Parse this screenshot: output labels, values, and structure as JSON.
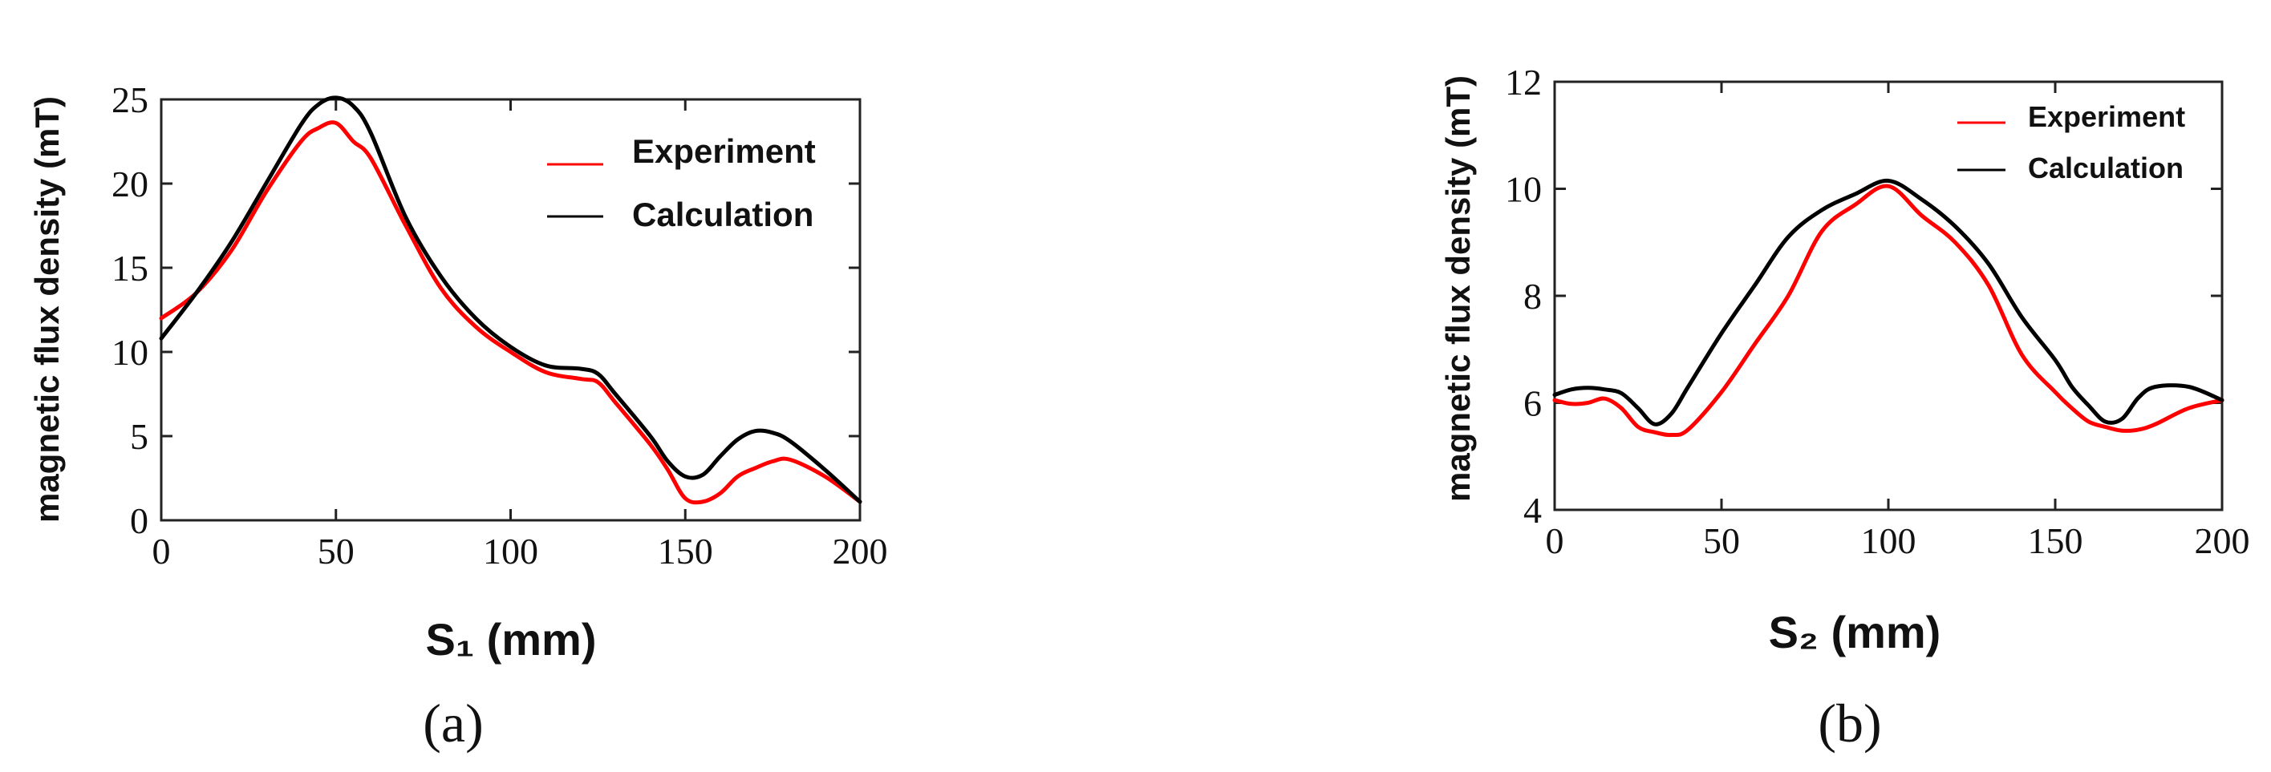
{
  "chart_data": [
    {
      "type": "line",
      "panel_label": "(a)",
      "xlabel": "S₁  (mm)",
      "ylabel": "magnetic flux density (mT)",
      "xlim": [
        0,
        200
      ],
      "ylim": [
        0,
        25
      ],
      "xticks": [
        "0",
        "50",
        "100",
        "150",
        "200"
      ],
      "yticks": [
        "0",
        "5",
        "10",
        "15",
        "20",
        "25"
      ],
      "grid": false,
      "legend_position": "top-right",
      "series": [
        {
          "name": "Experiment",
          "color": "#ff0000",
          "x": [
            0,
            10,
            20,
            30,
            40,
            45,
            50,
            55,
            60,
            70,
            80,
            90,
            100,
            110,
            120,
            125,
            130,
            140,
            145,
            150,
            155,
            160,
            165,
            170,
            175,
            180,
            190,
            200
          ],
          "y": [
            12,
            13.5,
            16,
            19.5,
            22.5,
            23.3,
            23.6,
            22.5,
            21.5,
            17.5,
            13.8,
            11.5,
            10,
            8.8,
            8.4,
            8.2,
            7,
            4.5,
            3,
            1.3,
            1.1,
            1.6,
            2.6,
            3.1,
            3.5,
            3.6,
            2.6,
            1.1
          ]
        },
        {
          "name": "Calculation",
          "color": "#000000",
          "x": [
            0,
            10,
            20,
            30,
            40,
            45,
            50,
            55,
            60,
            70,
            80,
            90,
            100,
            110,
            120,
            125,
            130,
            140,
            145,
            150,
            155,
            160,
            165,
            170,
            175,
            180,
            190,
            200
          ],
          "y": [
            10.8,
            13.5,
            16.5,
            20,
            23.5,
            24.7,
            25.1,
            24.6,
            23,
            18,
            14.5,
            12,
            10.3,
            9.2,
            9,
            8.7,
            7.5,
            5,
            3.5,
            2.6,
            2.7,
            3.8,
            4.8,
            5.3,
            5.2,
            4.7,
            3,
            1.1
          ]
        }
      ]
    },
    {
      "type": "line",
      "panel_label": "(b)",
      "xlabel": "S₂  (mm)",
      "ylabel": "magnetic flux density (mT)",
      "xlim": [
        0,
        200
      ],
      "ylim": [
        4,
        12
      ],
      "xticks": [
        "0",
        "50",
        "100",
        "150",
        "200"
      ],
      "yticks": [
        "4",
        "6",
        "8",
        "10",
        "12"
      ],
      "grid": false,
      "legend_position": "top-right",
      "series": [
        {
          "name": "Experiment",
          "color": "#ff0000",
          "x": [
            0,
            5,
            10,
            15,
            20,
            25,
            30,
            35,
            40,
            50,
            60,
            70,
            80,
            90,
            100,
            110,
            120,
            130,
            140,
            150,
            155,
            160,
            165,
            170,
            175,
            180,
            190,
            200
          ],
          "y": [
            6.05,
            5.98,
            6.0,
            6.08,
            5.9,
            5.55,
            5.45,
            5.4,
            5.5,
            6.2,
            7.1,
            8.0,
            9.2,
            9.7,
            10.05,
            9.5,
            9.0,
            8.2,
            6.9,
            6.2,
            5.9,
            5.65,
            5.55,
            5.48,
            5.5,
            5.6,
            5.9,
            6.05
          ]
        },
        {
          "name": "Calculation",
          "color": "#000000",
          "x": [
            0,
            5,
            10,
            15,
            20,
            25,
            30,
            35,
            40,
            50,
            60,
            70,
            80,
            90,
            100,
            110,
            120,
            130,
            140,
            150,
            155,
            160,
            165,
            170,
            175,
            180,
            190,
            200
          ],
          "y": [
            6.15,
            6.25,
            6.28,
            6.25,
            6.18,
            5.9,
            5.6,
            5.8,
            6.3,
            7.3,
            8.2,
            9.1,
            9.6,
            9.9,
            10.15,
            9.8,
            9.3,
            8.6,
            7.6,
            6.8,
            6.3,
            5.95,
            5.65,
            5.7,
            6.1,
            6.3,
            6.3,
            6.05
          ]
        }
      ]
    }
  ]
}
